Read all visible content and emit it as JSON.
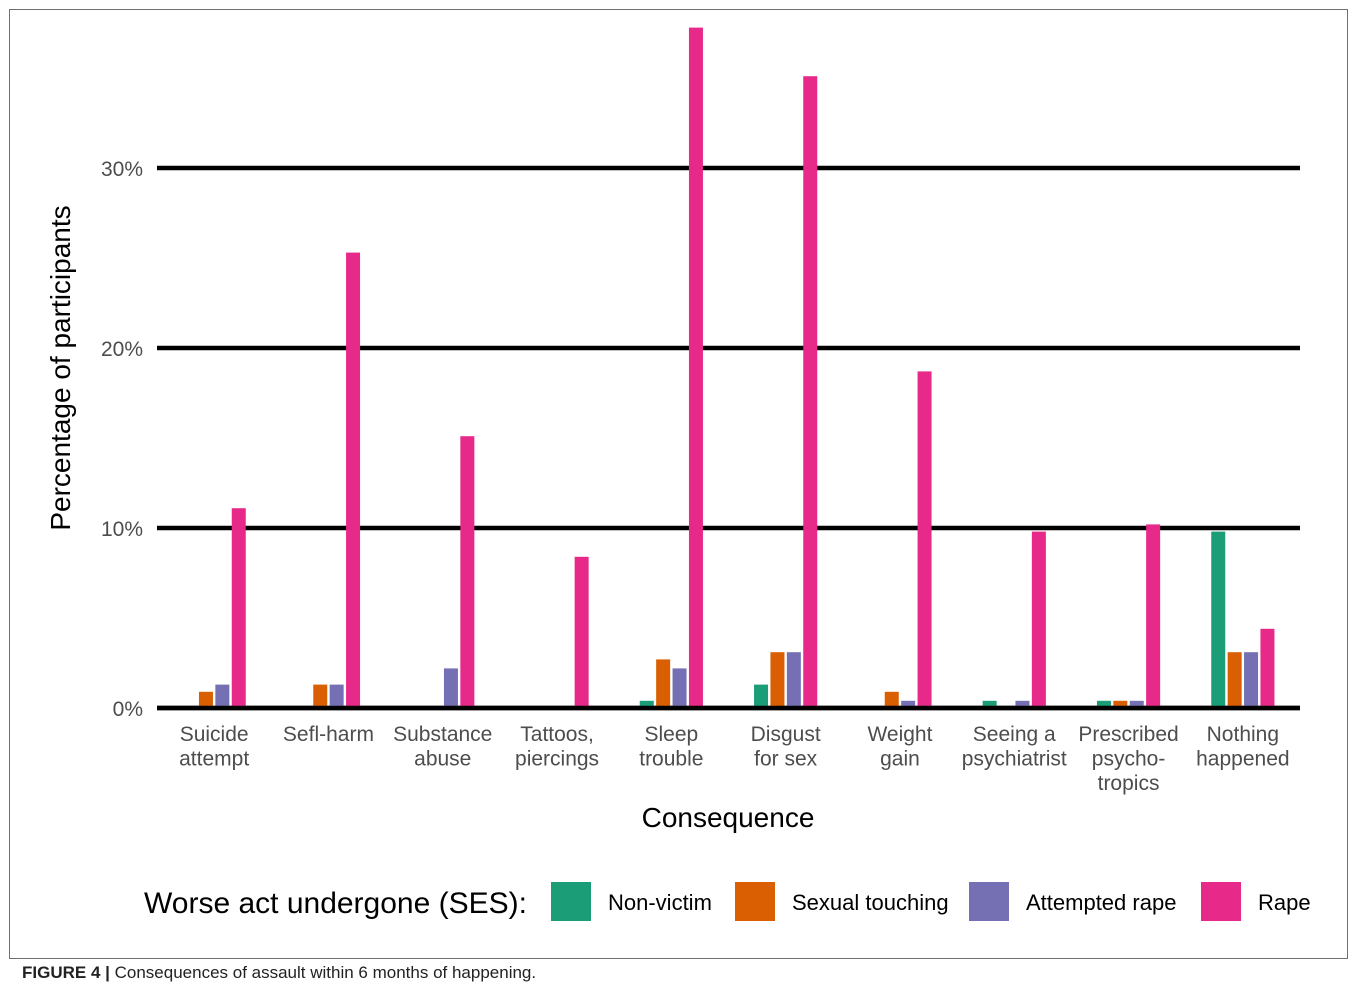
{
  "chart_data": {
    "type": "bar",
    "xlabel": "Consequence",
    "ylabel": "Percentage of participants",
    "ylim": [
      0,
      38
    ],
    "yticks": [
      0,
      10,
      20,
      30
    ],
    "ytick_labels": [
      "0%",
      "10%",
      "20%",
      "30%"
    ],
    "grid": "major y lines",
    "categories": [
      [
        "Suicide",
        "attempt"
      ],
      [
        "Sefl-harm"
      ],
      [
        "Substance",
        "abuse"
      ],
      [
        "Tattoos,",
        "piercings"
      ],
      [
        "Sleep",
        "trouble"
      ],
      [
        "Disgust",
        "for sex"
      ],
      [
        "Weight",
        "gain"
      ],
      [
        "Seeing a",
        "psychiatrist"
      ],
      [
        "Prescribed",
        "psycho-",
        "tropics"
      ],
      [
        "Nothing",
        "happened"
      ]
    ],
    "legend": {
      "title": "Worse act undergone (SES):",
      "position": "bottom"
    },
    "series": [
      {
        "name": "Non-victim",
        "color": "#1b9e77",
        "values": [
          0,
          0,
          0,
          0,
          0.4,
          1.3,
          0,
          0.4,
          0.4,
          9.8
        ]
      },
      {
        "name": "Sexual touching",
        "color": "#d95f02",
        "values": [
          0.9,
          1.3,
          0,
          0,
          2.7,
          3.1,
          0.9,
          0,
          0.4,
          3.1
        ]
      },
      {
        "name": "Attempted rape",
        "color": "#7570b3",
        "values": [
          1.3,
          1.3,
          2.2,
          0,
          2.2,
          3.1,
          0.4,
          0.4,
          0.4,
          3.1
        ]
      },
      {
        "name": "Rape",
        "color": "#e7298a",
        "values": [
          11.1,
          25.3,
          15.1,
          8.4,
          37.8,
          35.1,
          18.7,
          9.8,
          10.2,
          4.4
        ]
      }
    ]
  },
  "caption": {
    "label": "FIGURE 4 |",
    "text": " Consequences of assault within 6 months of happening."
  }
}
